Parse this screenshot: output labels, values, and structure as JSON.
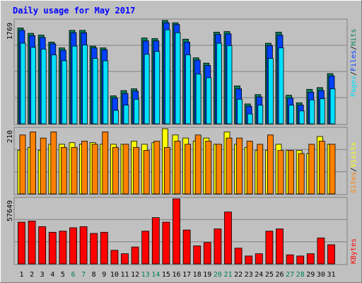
{
  "title": "Daily usage for May 2017",
  "colors": {
    "background": "#c0c0c0",
    "border_light": "#ffffff",
    "border_dark": "#808080",
    "title": "#0000ff",
    "hits": "#00805c",
    "files": "#0040ff",
    "pages": "#00e0ff",
    "visits": "#ffff00",
    "sites": "#ff8000",
    "kbytes": "#ff0000",
    "weekend_label": "#00805c",
    "weekday_label": "#000000"
  },
  "legends": {
    "top": {
      "pages": "Pages",
      "files": "Files",
      "hits": "Hits",
      "sep": "/"
    },
    "middle": {
      "sites": "Sites",
      "visits": "Visits",
      "sep": "/"
    },
    "bottom": {
      "kbytes": "KBytes"
    }
  },
  "chart_data": [
    {
      "type": "bar",
      "name": "hits-files-pages",
      "ymax_label": "1769",
      "ylim": [
        0,
        1769
      ],
      "categories": [
        "1",
        "2",
        "3",
        "4",
        "5",
        "6",
        "7",
        "8",
        "9",
        "10",
        "11",
        "12",
        "13",
        "14",
        "15",
        "16",
        "17",
        "18",
        "19",
        "20",
        "21",
        "22",
        "23",
        "24",
        "25",
        "26",
        "27",
        "28",
        "29",
        "30",
        "31"
      ],
      "weekend": [
        false,
        false,
        false,
        false,
        false,
        true,
        true,
        false,
        false,
        false,
        false,
        false,
        true,
        true,
        false,
        false,
        false,
        false,
        false,
        true,
        true,
        false,
        false,
        false,
        false,
        false,
        true,
        true,
        false,
        false,
        false
      ],
      "series": [
        {
          "name": "Hits",
          "values": [
            1640,
            1550,
            1520,
            1400,
            1300,
            1600,
            1600,
            1330,
            1300,
            480,
            570,
            600,
            1470,
            1460,
            1770,
            1730,
            1450,
            1130,
            1040,
            1570,
            1580,
            650,
            340,
            500,
            1380,
            1570,
            490,
            360,
            590,
            620,
            860
          ]
        },
        {
          "name": "Files",
          "values": [
            1600,
            1510,
            1480,
            1370,
            1260,
            1560,
            1560,
            1300,
            1270,
            440,
            520,
            560,
            1420,
            1420,
            1730,
            1700,
            1400,
            1090,
            1000,
            1530,
            1540,
            600,
            300,
            460,
            1340,
            1520,
            440,
            320,
            540,
            570,
            820
          ]
        },
        {
          "name": "Pages",
          "values": [
            1380,
            1310,
            1280,
            1180,
            1080,
            1330,
            1350,
            1120,
            1080,
            230,
            320,
            420,
            1190,
            1240,
            1610,
            1560,
            1180,
            850,
            790,
            1380,
            1340,
            420,
            170,
            320,
            1120,
            1300,
            320,
            220,
            410,
            430,
            600
          ]
        }
      ]
    },
    {
      "type": "bar",
      "name": "visits-sites",
      "ymax_label": "210",
      "ylim": [
        0,
        210
      ],
      "categories": [
        "1",
        "2",
        "3",
        "4",
        "5",
        "6",
        "7",
        "8",
        "9",
        "10",
        "11",
        "12",
        "13",
        "14",
        "15",
        "16",
        "17",
        "18",
        "19",
        "20",
        "21",
        "22",
        "23",
        "24",
        "25",
        "26",
        "27",
        "28",
        "29",
        "30",
        "31"
      ],
      "series": [
        {
          "name": "Visits",
          "values": [
            140,
            150,
            140,
            160,
            160,
            165,
            160,
            165,
            160,
            160,
            160,
            170,
            160,
            165,
            210,
            190,
            180,
            170,
            180,
            160,
            200,
            160,
            150,
            140,
            140,
            160,
            140,
            140,
            130,
            185,
            160
          ]
        },
        {
          "name": "Sites",
          "values": [
            190,
            200,
            180,
            200,
            150,
            150,
            170,
            160,
            200,
            150,
            160,
            150,
            140,
            170,
            150,
            170,
            160,
            190,
            170,
            160,
            180,
            180,
            170,
            160,
            190,
            140,
            140,
            130,
            160,
            170,
            160
          ]
        }
      ]
    },
    {
      "type": "bar",
      "name": "kbytes",
      "ymax_label": "57649",
      "ylim": [
        0,
        57649
      ],
      "categories": [
        "1",
        "2",
        "3",
        "4",
        "5",
        "6",
        "7",
        "8",
        "9",
        "10",
        "11",
        "12",
        "13",
        "14",
        "15",
        "16",
        "17",
        "18",
        "19",
        "20",
        "21",
        "22",
        "23",
        "24",
        "25",
        "26",
        "27",
        "28",
        "29",
        "30",
        "31"
      ],
      "series": [
        {
          "name": "KBytes",
          "values": [
            37000,
            38000,
            33000,
            28000,
            29000,
            32000,
            33000,
            27000,
            28000,
            12000,
            9000,
            15000,
            29000,
            41000,
            37000,
            57649,
            30000,
            16000,
            19000,
            31000,
            46000,
            14000,
            7000,
            9000,
            29000,
            31000,
            8000,
            7000,
            9000,
            23000,
            17000
          ]
        }
      ]
    }
  ]
}
